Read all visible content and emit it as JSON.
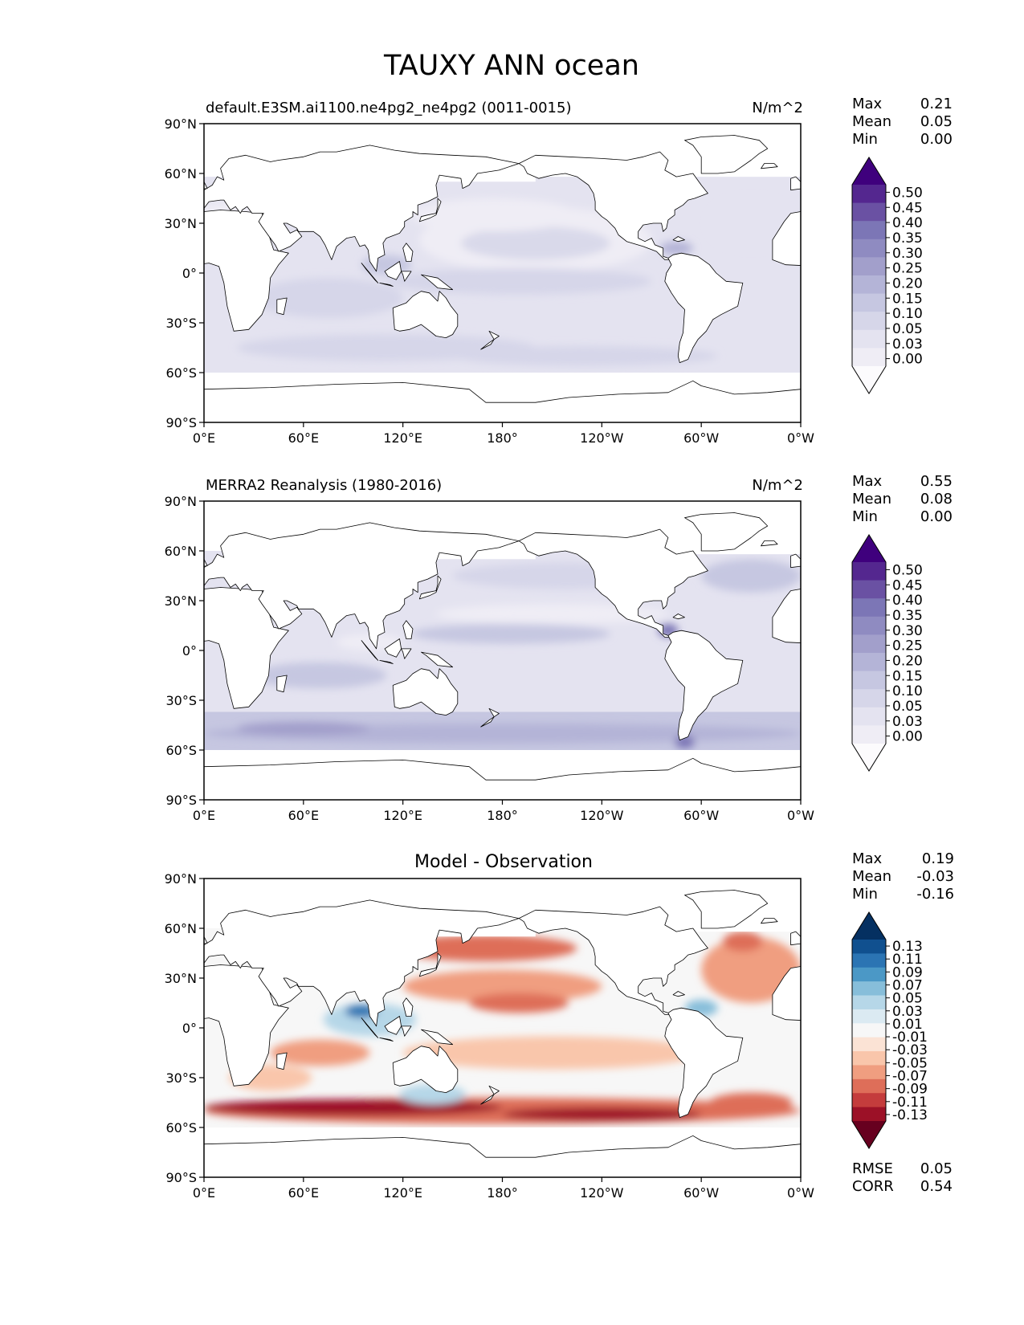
{
  "figure_title": "TAUXY ANN ocean",
  "panels": [
    {
      "title_left": "default.E3SM.ai1100.ne4pg2_ne4pg2 (0011-0015)",
      "title_center": "",
      "units": "N/m^2",
      "stats": [
        {
          "label": "Max",
          "value": "0.21"
        },
        {
          "label": "Mean",
          "value": "0.05"
        },
        {
          "label": "Min",
          "value": "0.00"
        }
      ],
      "colorbar_ticks": [
        "0.50",
        "0.45",
        "0.40",
        "0.35",
        "0.30",
        "0.25",
        "0.20",
        "0.15",
        "0.10",
        "0.05",
        "0.03",
        "0.00"
      ],
      "colormap": "purples",
      "footer_stats": []
    },
    {
      "title_left": "MERRA2 Reanalysis (1980-2016)",
      "title_center": "",
      "units": "N/m^2",
      "stats": [
        {
          "label": "Max",
          "value": "0.55"
        },
        {
          "label": "Mean",
          "value": "0.08"
        },
        {
          "label": "Min",
          "value": "0.00"
        }
      ],
      "colorbar_ticks": [
        "0.50",
        "0.45",
        "0.40",
        "0.35",
        "0.30",
        "0.25",
        "0.20",
        "0.15",
        "0.10",
        "0.05",
        "0.03",
        "0.00"
      ],
      "colormap": "purples",
      "footer_stats": []
    },
    {
      "title_left": "",
      "title_center": "Model - Observation",
      "units": "",
      "stats": [
        {
          "label": "Max",
          "value": "0.19"
        },
        {
          "label": "Mean",
          "value": "-0.03"
        },
        {
          "label": "Min",
          "value": "-0.16"
        }
      ],
      "colorbar_ticks": [
        "0.13",
        "0.11",
        "0.09",
        "0.07",
        "0.05",
        "0.03",
        "0.01",
        "-0.01",
        "-0.03",
        "-0.05",
        "-0.07",
        "-0.09",
        "-0.11",
        "-0.13"
      ],
      "colormap": "diverging-red-blue",
      "footer_stats": [
        {
          "label": "RMSE",
          "value": "0.05"
        },
        {
          "label": "CORR",
          "value": "0.54"
        }
      ]
    }
  ],
  "lat_ticks": [
    "90°N",
    "60°N",
    "30°N",
    "0°",
    "30°S",
    "60°S",
    "90°S"
  ],
  "lon_ticks": [
    "0°E",
    "60°E",
    "120°E",
    "180°",
    "120°W",
    "60°W",
    "0°W"
  ],
  "colors": {
    "purples": [
      "#fcfbfd",
      "#efedf5",
      "#e4e3f0",
      "#d6d6e9",
      "#c6c7e1",
      "#b4b4d7",
      "#a29fcb",
      "#8f8bc1",
      "#7c76b6",
      "#6a51a3",
      "#54278f",
      "#3f007d"
    ],
    "diverging": [
      "#67001f",
      "#9c1127",
      "#c43c3c",
      "#de6e59",
      "#f09e80",
      "#f9c6ab",
      "#fbe3d5",
      "#f7f7f7",
      "#dbeaf2",
      "#b6d7e8",
      "#87beda",
      "#4b98c6",
      "#2b74b3",
      "#10508f",
      "#053061"
    ],
    "land": "#ffffff",
    "coast": "#000000"
  }
}
